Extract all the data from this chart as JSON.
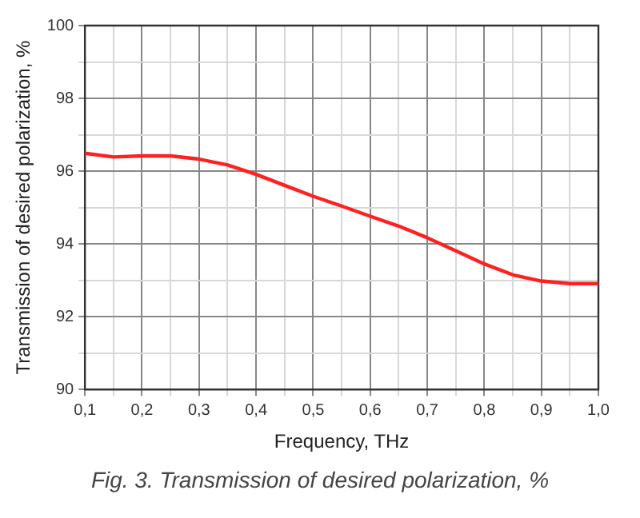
{
  "chart_data": {
    "type": "line",
    "xlabel": "Frequency, THz",
    "ylabel": "Transmission of desired polarization, %",
    "annotations": [
      "Fig. 3. Transmission of desired polarization, %"
    ],
    "x": [
      0.1,
      0.15,
      0.2,
      0.25,
      0.3,
      0.35,
      0.4,
      0.45,
      0.5,
      0.55,
      0.6,
      0.65,
      0.7,
      0.75,
      0.8,
      0.85,
      0.9,
      0.95,
      1.0
    ],
    "series": [
      {
        "color": "#ff2020",
        "values": [
          96.49,
          96.39,
          96.42,
          96.42,
          96.33,
          96.17,
          95.91,
          95.61,
          95.31,
          95.04,
          94.76,
          94.49,
          94.17,
          93.81,
          93.45,
          93.15,
          92.98,
          92.91,
          92.91
        ]
      }
    ],
    "xlim": [
      0.1,
      1.0
    ],
    "xticks": [
      {
        "value": 0.1,
        "label": "0,1"
      },
      {
        "value": 0.15,
        "label": null
      },
      {
        "value": 0.2,
        "label": "0,2"
      },
      {
        "value": 0.25,
        "label": null
      },
      {
        "value": 0.3,
        "label": "0,3"
      },
      {
        "value": 0.35,
        "label": null
      },
      {
        "value": 0.4,
        "label": "0,4"
      },
      {
        "value": 0.45,
        "label": null
      },
      {
        "value": 0.5,
        "label": "0,5"
      },
      {
        "value": 0.55,
        "label": null
      },
      {
        "value": 0.6,
        "label": "0,6"
      },
      {
        "value": 0.65,
        "label": null
      },
      {
        "value": 0.7,
        "label": "0,7"
      },
      {
        "value": 0.75,
        "label": null
      },
      {
        "value": 0.8,
        "label": "0,8"
      },
      {
        "value": 0.85,
        "label": null
      },
      {
        "value": 0.9,
        "label": "0,9"
      },
      {
        "value": 0.95,
        "label": null
      },
      {
        "value": 1.0,
        "label": "1,0"
      }
    ],
    "ylim": [
      90,
      100
    ],
    "yticks": [
      90,
      {
        "value": 91,
        "label": null
      },
      92,
      {
        "value": 93,
        "label": null
      },
      94,
      {
        "value": 95,
        "label": null
      },
      96,
      {
        "value": 97,
        "label": null
      },
      98,
      {
        "value": 99,
        "label": null
      },
      100
    ],
    "grid": true,
    "legend": false,
    "marker": "none",
    "line_style": "solid"
  }
}
